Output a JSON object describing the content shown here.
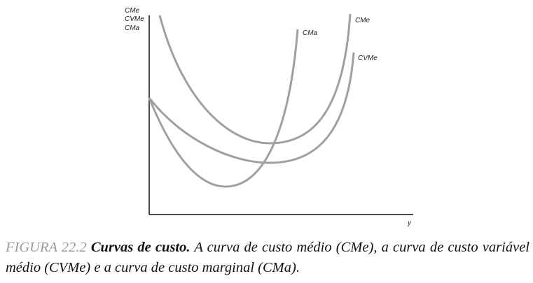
{
  "diagram": {
    "y_axis_labels": [
      "CMe",
      "CVMe",
      "CMa"
    ],
    "x_axis_label": "y",
    "curves": [
      {
        "label": "CMa"
      },
      {
        "label": "CMe"
      },
      {
        "label": "CVMe"
      }
    ]
  },
  "caption": {
    "figure": "FIGURA 22.2",
    "title": "Curvas de custo.",
    "text": "A curva de custo médio (CMe), a curva de custo variável médio (CVMe) e a curva de custo marginal (CMa)."
  }
}
